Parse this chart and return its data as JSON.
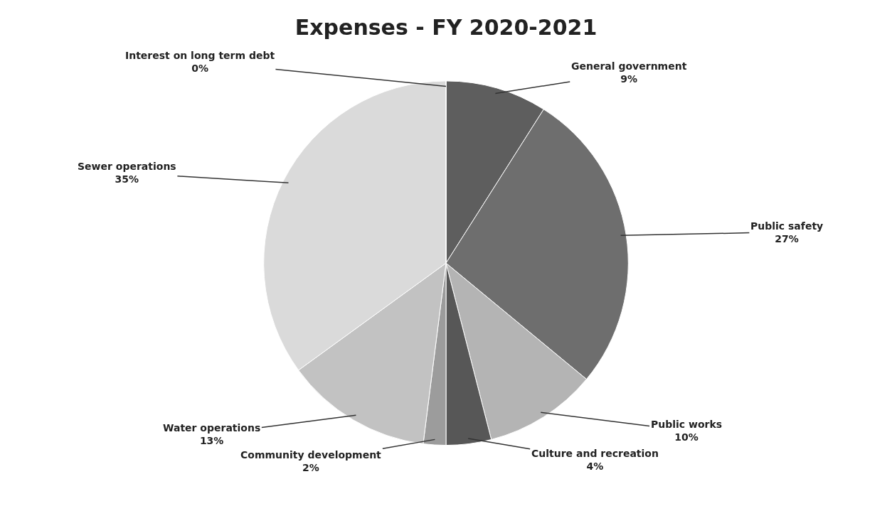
{
  "chart_data": {
    "type": "pie",
    "title": "Expenses - FY 2020-2021",
    "categories": [
      "General government",
      "Public safety",
      "Public works",
      "Culture and recreation",
      "Community development",
      "Water operations",
      "Sewer operations",
      "Interest on long term debt"
    ],
    "values": [
      9,
      27,
      10,
      4,
      2,
      13,
      35,
      0
    ],
    "value_labels": [
      "9%",
      "27%",
      "10%",
      "4%",
      "2%",
      "13%",
      "35%",
      "0%"
    ],
    "colors": [
      "#5e5e5e",
      "#6e6e6e",
      "#b4b4b4",
      "#575757",
      "#9c9c9c",
      "#c2c2c2",
      "#dadada",
      "#ededed"
    ],
    "legend": false
  }
}
